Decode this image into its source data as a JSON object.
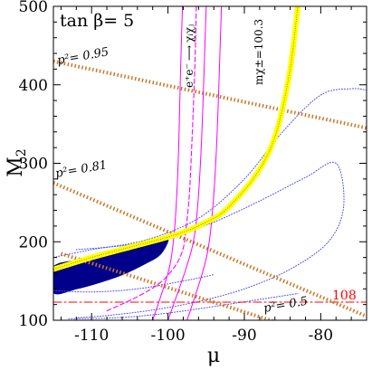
{
  "chart_data": {
    "type": "line",
    "title": "",
    "xlabel": "μ",
    "ylabel": "M",
    "ylabel_sub": "2",
    "xlim": [
      -115,
      -74
    ],
    "ylim": [
      100,
      500
    ],
    "xticks": [
      -110,
      -100,
      -90,
      -80
    ],
    "xtick_labels": [
      "-110",
      "-100",
      "-90",
      "-80"
    ],
    "yticks": [
      100,
      200,
      300,
      400,
      500
    ],
    "ytick_labels": [
      "100",
      "200",
      "300",
      "400",
      "500"
    ],
    "x_minor_step": 2,
    "y_minor_step": 20,
    "grid": false,
    "annotations": {
      "tanbeta": "tan β= 5",
      "process_lhs": "e⁺e⁻",
      "process_arrow": "⟶",
      "process_rhs": "χᵢχⱼ",
      "mass_label": "mχ±=100.3",
      "p095": "p²= 0.95",
      "p081": "p²= 0.81",
      "p05": "p²= 0.5",
      "limit108": "108"
    },
    "series": [
      {
        "kind": "yellow-band",
        "color": "#ffff00",
        "x": [
          -115,
          -110,
          -105,
          -100,
          -97,
          -95,
          -93,
          -91,
          -89,
          -87,
          -85.5,
          -84,
          -83
        ],
        "y": [
          165,
          180,
          193,
          206,
          216,
          225,
          236,
          255,
          278,
          310,
          350,
          420,
          500
        ]
      },
      {
        "kind": "p2-0.95",
        "color": "#c87828",
        "x": [
          -115,
          -74
        ],
        "y": [
          430,
          345
        ]
      },
      {
        "kind": "p2-0.81",
        "color": "#c87828",
        "x": [
          -115,
          -74
        ],
        "y": [
          275,
          105
        ]
      },
      {
        "kind": "p2-0.5",
        "color": "#c87828",
        "x": [
          -114,
          -85
        ],
        "y": [
          185,
          95
        ]
      },
      {
        "kind": "line-108",
        "color": "#ff0000",
        "x": [
          -115,
          -74
        ],
        "y": [
          123,
          123
        ]
      },
      {
        "kind": "blue-region",
        "color": "#00008b",
        "x": [
          -115,
          -112,
          -109,
          -106,
          -103,
          -101,
          -100,
          -102,
          -105,
          -108,
          -111,
          -115
        ],
        "y": [
          135,
          140,
          148,
          158,
          172,
          184,
          204,
          200,
          194,
          186,
          178,
          168
        ]
      },
      {
        "kind": "magenta-dashed",
        "color": "#ff00ff",
        "x": [
          -108,
          -104,
          -101,
          -99,
          -98,
          -97.6,
          -97.2,
          -96.9,
          -96.6,
          -96.4,
          -96.3
        ],
        "y": [
          112,
          130,
          148,
          170,
          192,
          220,
          260,
          320,
          390,
          450,
          500
        ]
      },
      {
        "kind": "magenta-solid-1",
        "color": "#ff00ff",
        "x": [
          -102,
          -100,
          -99.3,
          -98.9,
          -98.6,
          -98.4,
          -98.2,
          -98.1
        ],
        "y": [
          100,
          160,
          200,
          250,
          320,
          400,
          470,
          500
        ]
      },
      {
        "kind": "magenta-solid-2",
        "color": "#ff00ff",
        "x": [
          -100,
          -97.5,
          -96.5,
          -96.0,
          -95.6,
          -95.3,
          -95.1,
          -95.0
        ],
        "y": [
          100,
          170,
          210,
          260,
          330,
          410,
          470,
          500
        ]
      },
      {
        "kind": "magenta-solid-3",
        "color": "#ff00ff",
        "x": [
          -97.5,
          -95.5,
          -94.6,
          -94.0,
          -93.6,
          -93.3,
          -93.1,
          -93.0
        ],
        "y": [
          100,
          160,
          200,
          260,
          330,
          410,
          470,
          500
        ]
      },
      {
        "kind": "blue-dotted-outer",
        "color": "#4a4aff",
        "x": [
          -115,
          -110,
          -103,
          -96,
          -90,
          -85,
          -80,
          -76,
          -74
        ],
        "y": [
          180,
          190,
          202,
          230,
          280,
          340,
          387,
          395,
          393
        ]
      },
      {
        "kind": "blue-dotted-loop",
        "color": "#4a4aff",
        "x": [
          -112,
          -106,
          -100,
          -94,
          -88,
          -82,
          -78,
          -77,
          -79,
          -84,
          -90,
          -96,
          -102,
          -108,
          -112
        ],
        "y": [
          190,
          195,
          205,
          225,
          252,
          282,
          300,
          245,
          200,
          165,
          140,
          124,
          113,
          106,
          103
        ]
      },
      {
        "kind": "blue-dotted-inner",
        "color": "#4a4aff",
        "x": [
          -115,
          -110,
          -104,
          -98,
          -94
        ],
        "y": [
          138,
          136,
          140,
          150,
          158
        ]
      },
      {
        "kind": "blue-dotted-bottom",
        "color": "#4a4aff",
        "x": [
          -113,
          -107,
          -101,
          -95,
          -89,
          -83
        ],
        "y": [
          102,
          103,
          108,
          116,
          125,
          134
        ]
      }
    ]
  }
}
